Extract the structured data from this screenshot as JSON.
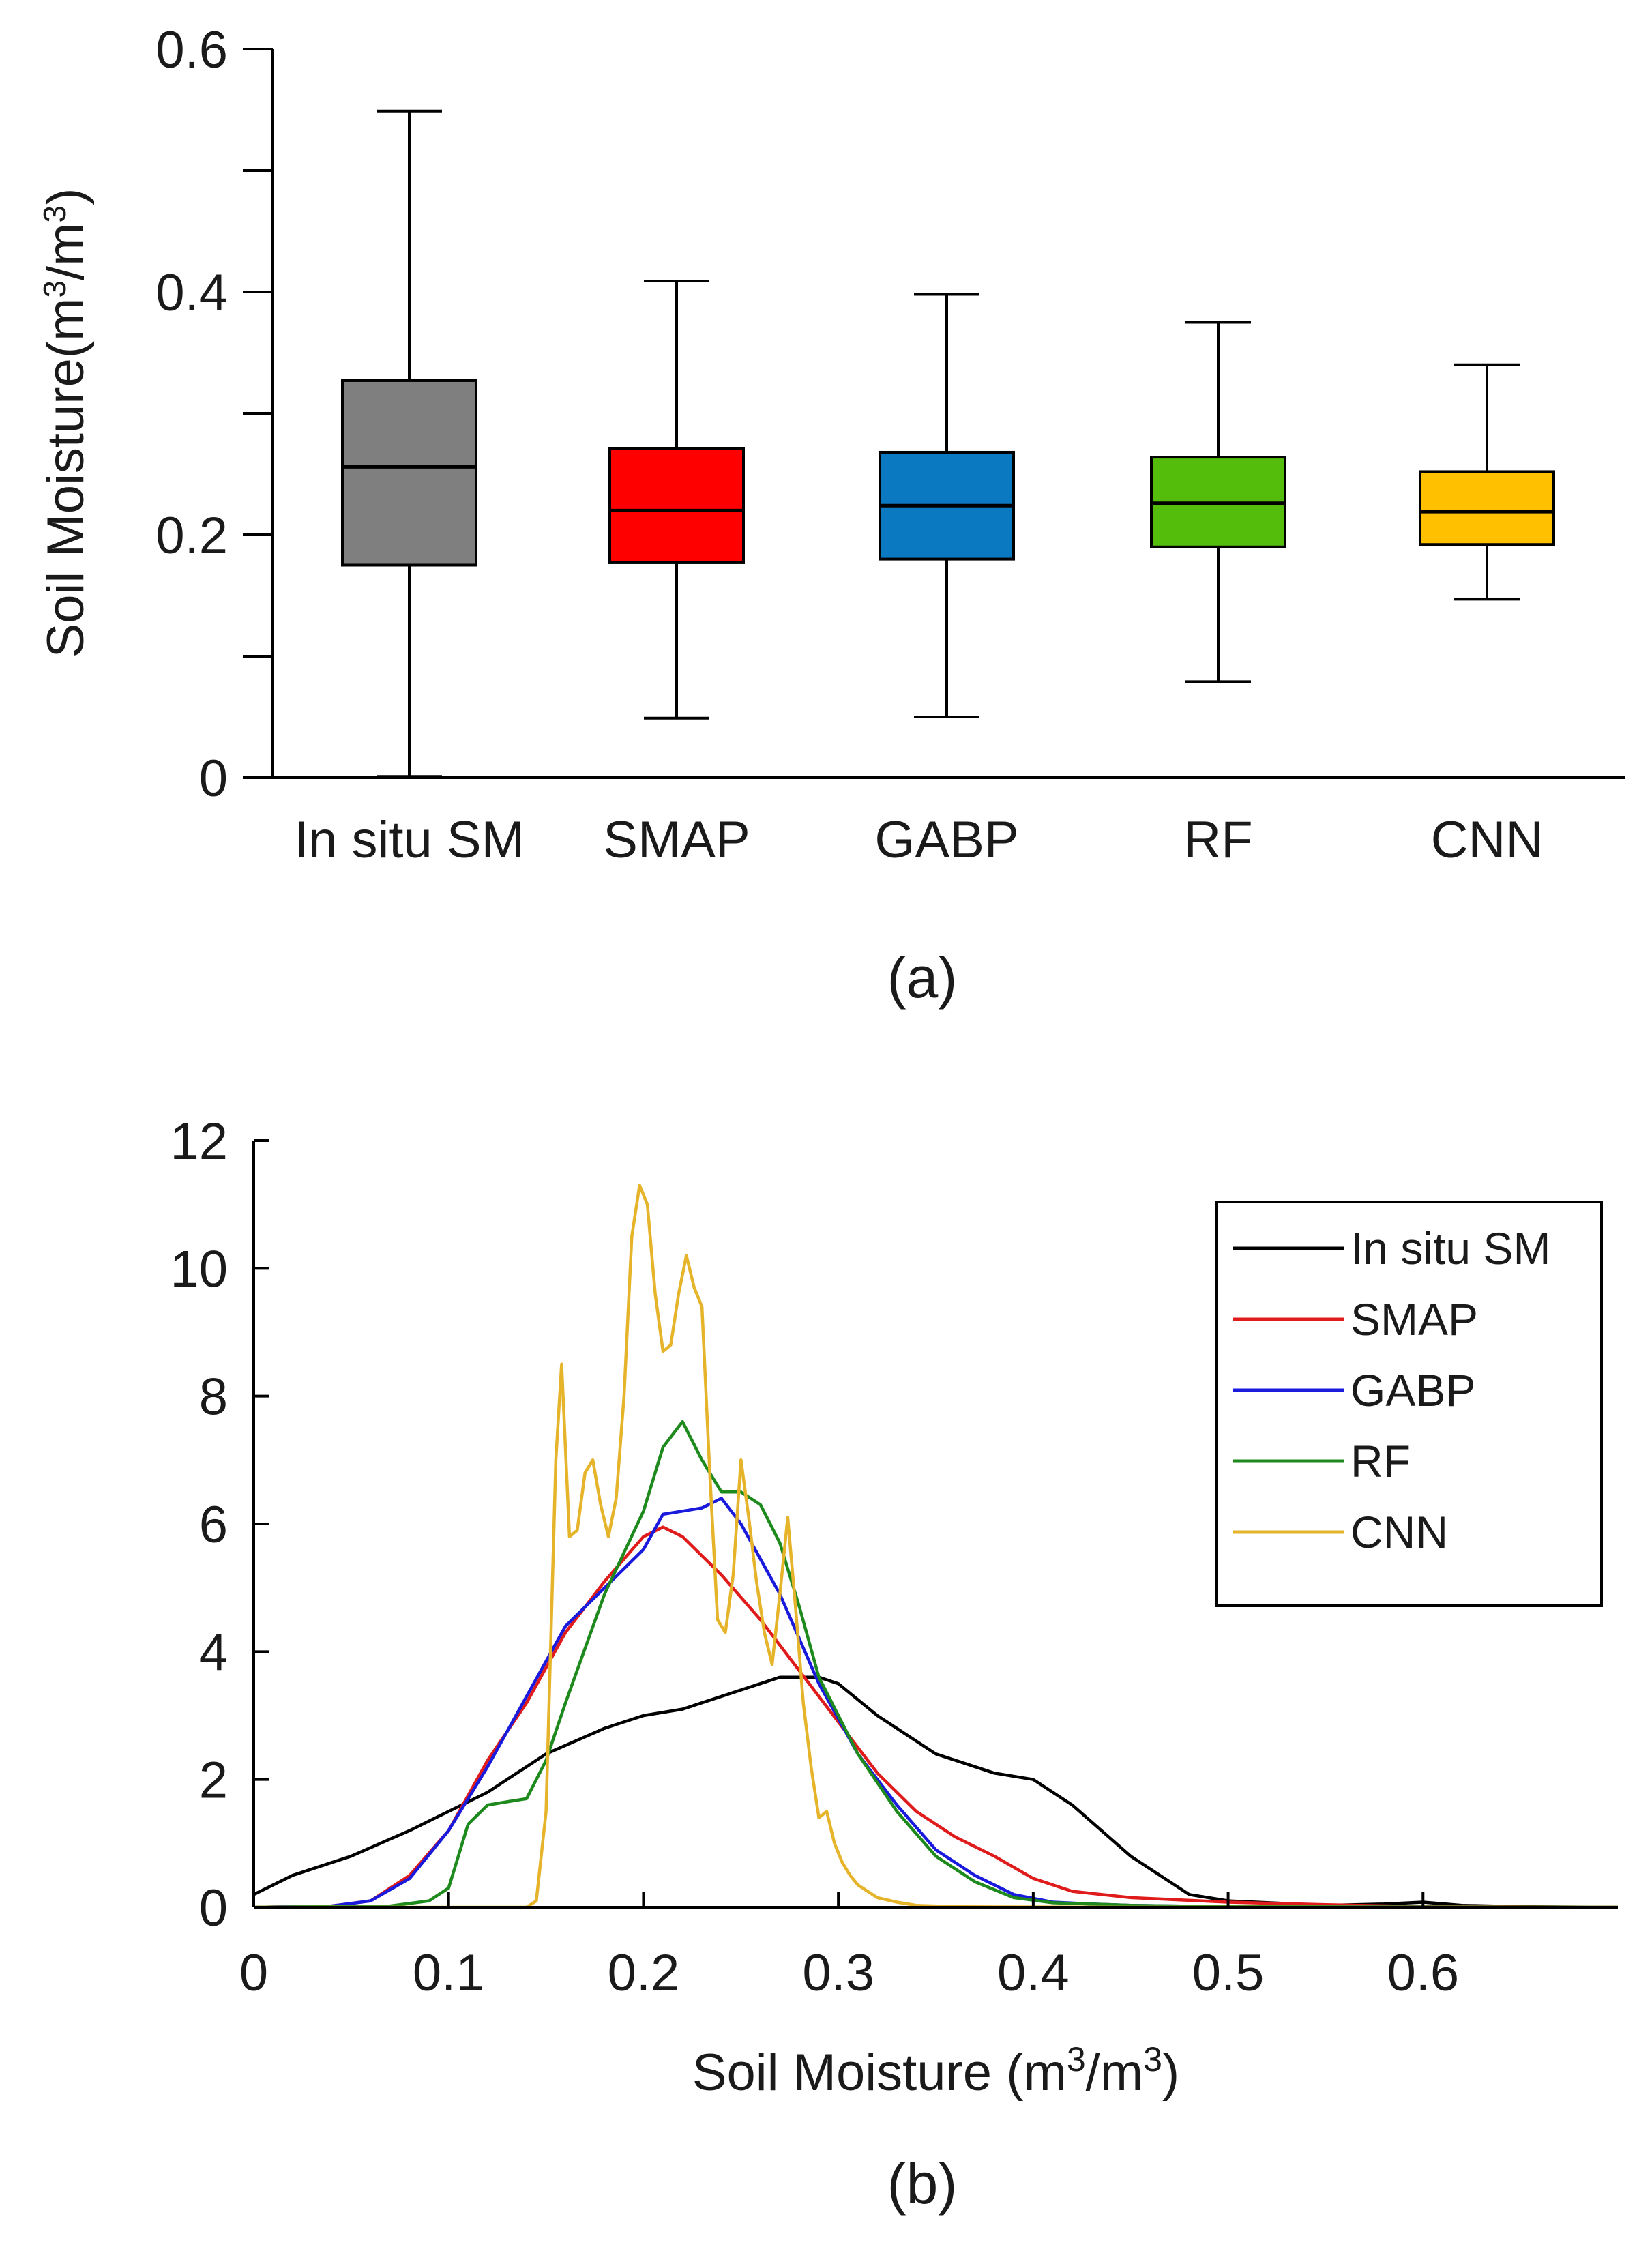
{
  "chart_data": [
    {
      "type": "box",
      "panel_label": "(a)",
      "ylabel_main": "Soil Moisture(m",
      "ylabel_sup1": "3",
      "ylabel_mid": "/m",
      "ylabel_sup2": "3",
      "ylabel_end": ")",
      "ylim": [
        0,
        0.6
      ],
      "yticks": [
        0,
        0.1,
        0.2,
        0.3,
        0.4,
        0.5,
        0.6
      ],
      "ytick_labels": [
        "0",
        "0.2",
        "0.4",
        "0.6"
      ],
      "ytick_label_values": [
        0,
        0.2,
        0.4,
        0.6
      ],
      "categories": [
        "In situ SM",
        "SMAP",
        "GABP",
        "RF",
        "CNN"
      ],
      "boxes": [
        {
          "name": "In situ SM",
          "whisker_low": 0.001,
          "q1": 0.175,
          "median": 0.256,
          "q3": 0.327,
          "whisker_high": 0.549,
          "color": "#7f7f7f"
        },
        {
          "name": "SMAP",
          "whisker_low": 0.049,
          "q1": 0.177,
          "median": 0.22,
          "q3": 0.271,
          "whisker_high": 0.409,
          "color": "#ff0000"
        },
        {
          "name": "GABP",
          "whisker_low": 0.05,
          "q1": 0.18,
          "median": 0.224,
          "q3": 0.268,
          "whisker_high": 0.398,
          "color": "#0a79c1"
        },
        {
          "name": "RF",
          "whisker_low": 0.079,
          "q1": 0.19,
          "median": 0.226,
          "q3": 0.264,
          "whisker_high": 0.375,
          "color": "#54bd0c"
        },
        {
          "name": "CNN",
          "whisker_low": 0.147,
          "q1": 0.192,
          "median": 0.219,
          "q3": 0.252,
          "whisker_high": 0.34,
          "color": "#ffc000"
        }
      ]
    },
    {
      "type": "line",
      "panel_label": "(b)",
      "xlabel_main": "Soil Moisture (m",
      "xlabel_sup1": "3",
      "xlabel_mid": "/m",
      "xlabel_sup2": "3",
      "xlabel_end": ")",
      "xlim": [
        0,
        0.7
      ],
      "ylim": [
        0,
        12
      ],
      "xticks": [
        0,
        0.1,
        0.2,
        0.3,
        0.4,
        0.5,
        0.6
      ],
      "xtick_labels": [
        "0",
        "0.1",
        "0.2",
        "0.3",
        "0.4",
        "0.5",
        "0.6"
      ],
      "yticks": [
        0,
        2,
        4,
        6,
        8,
        10,
        12
      ],
      "ytick_labels": [
        "0",
        "2",
        "4",
        "6",
        "8",
        "10",
        "12"
      ],
      "legend_position": "top-right",
      "series": [
        {
          "name": "In situ SM",
          "color": "#000000",
          "x": [
            0,
            0.02,
            0.05,
            0.08,
            0.1,
            0.12,
            0.15,
            0.18,
            0.2,
            0.22,
            0.25,
            0.27,
            0.29,
            0.3,
            0.32,
            0.35,
            0.38,
            0.4,
            0.42,
            0.45,
            0.48,
            0.5,
            0.55,
            0.58,
            0.6,
            0.62,
            0.65,
            0.7
          ],
          "y": [
            0.2,
            0.5,
            0.8,
            1.2,
            1.5,
            1.8,
            2.4,
            2.8,
            3.0,
            3.1,
            3.4,
            3.6,
            3.6,
            3.5,
            3.0,
            2.4,
            2.1,
            2.0,
            1.6,
            0.8,
            0.2,
            0.1,
            0.03,
            0.05,
            0.08,
            0.03,
            0.01,
            0.0
          ]
        },
        {
          "name": "SMAP",
          "color": "#e01b1b",
          "x": [
            0,
            0.04,
            0.06,
            0.08,
            0.1,
            0.12,
            0.14,
            0.16,
            0.18,
            0.2,
            0.21,
            0.22,
            0.24,
            0.26,
            0.28,
            0.3,
            0.32,
            0.34,
            0.36,
            0.38,
            0.4,
            0.42,
            0.45,
            0.5,
            0.55,
            0.6,
            0.7
          ],
          "y": [
            0,
            0.02,
            0.1,
            0.5,
            1.2,
            2.3,
            3.2,
            4.3,
            5.1,
            5.8,
            5.95,
            5.8,
            5.2,
            4.5,
            3.7,
            2.9,
            2.1,
            1.5,
            1.1,
            0.8,
            0.45,
            0.25,
            0.15,
            0.08,
            0.04,
            0.01,
            0
          ]
        },
        {
          "name": "GABP",
          "color": "#1a1adc",
          "x": [
            0,
            0.04,
            0.06,
            0.08,
            0.1,
            0.12,
            0.14,
            0.16,
            0.18,
            0.2,
            0.21,
            0.22,
            0.23,
            0.24,
            0.25,
            0.27,
            0.29,
            0.31,
            0.33,
            0.35,
            0.37,
            0.39,
            0.41,
            0.43,
            0.45,
            0.5,
            0.7
          ],
          "y": [
            0,
            0.02,
            0.1,
            0.45,
            1.2,
            2.2,
            3.3,
            4.4,
            5.0,
            5.6,
            6.15,
            6.2,
            6.25,
            6.4,
            6.0,
            4.9,
            3.5,
            2.4,
            1.6,
            0.9,
            0.5,
            0.2,
            0.08,
            0.05,
            0.03,
            0.01,
            0
          ]
        },
        {
          "name": "RF",
          "color": "#1e8a1e",
          "x": [
            0,
            0.07,
            0.09,
            0.1,
            0.11,
            0.12,
            0.13,
            0.14,
            0.15,
            0.16,
            0.18,
            0.2,
            0.21,
            0.22,
            0.23,
            0.24,
            0.25,
            0.26,
            0.27,
            0.28,
            0.29,
            0.31,
            0.33,
            0.35,
            0.37,
            0.39,
            0.41,
            0.45,
            0.5,
            0.7
          ],
          "y": [
            0,
            0.02,
            0.1,
            0.3,
            1.3,
            1.6,
            1.65,
            1.7,
            2.3,
            3.2,
            4.9,
            6.2,
            7.2,
            7.6,
            7.0,
            6.5,
            6.5,
            6.3,
            5.7,
            4.7,
            3.6,
            2.4,
            1.5,
            0.8,
            0.4,
            0.15,
            0.07,
            0.03,
            0.01,
            0
          ]
        },
        {
          "name": "CNN",
          "color": "#e6b42a",
          "x": [
            0,
            0.14,
            0.145,
            0.15,
            0.155,
            0.158,
            0.162,
            0.166,
            0.17,
            0.174,
            0.178,
            0.182,
            0.186,
            0.19,
            0.194,
            0.198,
            0.202,
            0.206,
            0.21,
            0.214,
            0.218,
            0.222,
            0.226,
            0.23,
            0.234,
            0.238,
            0.242,
            0.246,
            0.25,
            0.254,
            0.258,
            0.262,
            0.266,
            0.27,
            0.274,
            0.278,
            0.282,
            0.286,
            0.29,
            0.294,
            0.298,
            0.302,
            0.306,
            0.31,
            0.315,
            0.32,
            0.33,
            0.34,
            0.36,
            0.38,
            0.42,
            0.46,
            0.7
          ],
          "y": [
            0,
            0,
            0.1,
            1.5,
            7.0,
            8.5,
            5.8,
            5.9,
            6.8,
            7.0,
            6.3,
            5.8,
            6.4,
            8.0,
            10.5,
            11.3,
            11.0,
            9.6,
            8.7,
            8.8,
            9.6,
            10.2,
            9.7,
            9.4,
            6.8,
            4.5,
            4.3,
            5.2,
            7.0,
            6.1,
            5.1,
            4.3,
            3.8,
            4.9,
            6.1,
            4.7,
            3.2,
            2.2,
            1.4,
            1.5,
            1.0,
            0.7,
            0.5,
            0.35,
            0.25,
            0.15,
            0.08,
            0.03,
            0.01,
            0.005,
            0.002,
            0,
            0
          ]
        }
      ]
    }
  ]
}
